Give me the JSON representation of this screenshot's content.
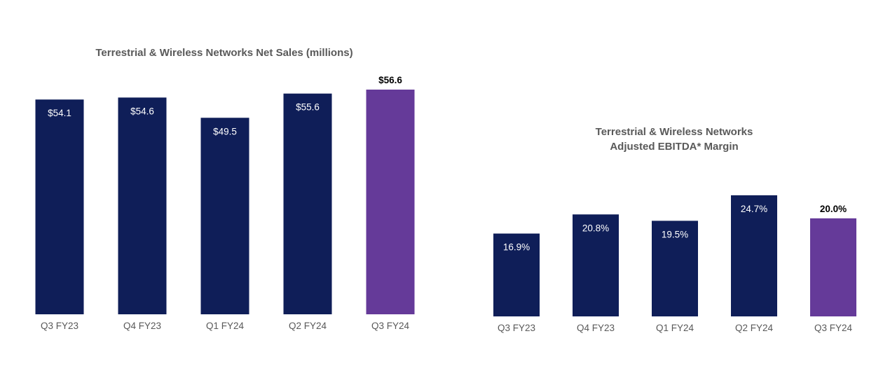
{
  "colors": {
    "bar": "#0f1e58",
    "highlight": "#653a99",
    "title": "#595959",
    "tick": "#595959",
    "label_inside": "#ffffff",
    "label_outside": "#000000"
  },
  "chart_data": [
    {
      "type": "bar",
      "title": "Terrestrial & Wireless Networks Net Sales (millions)",
      "categories": [
        "Q3 FY23",
        "Q4 FY23",
        "Q1 FY24",
        "Q2 FY24",
        "Q3 FY24"
      ],
      "values": [
        54.1,
        54.6,
        49.5,
        55.6,
        56.6
      ],
      "data_labels": [
        "$54.1",
        "$54.6",
        "$49.5",
        "$55.6",
        "$56.6"
      ],
      "highlight_index": 4,
      "ylim": [
        0,
        56.6
      ],
      "grid": false,
      "legend": "none"
    },
    {
      "type": "bar",
      "title_lines": [
        "Terrestrial & Wireless Networks",
        "Adjusted EBITDA* Margin"
      ],
      "categories": [
        "Q3 FY23",
        "Q4 FY23",
        "Q1 FY24",
        "Q2 FY24",
        "Q3 FY24"
      ],
      "values": [
        16.9,
        20.8,
        19.5,
        24.7,
        20.0
      ],
      "data_labels": [
        "16.9%",
        "20.8%",
        "19.5%",
        "24.7%",
        "20.0%"
      ],
      "highlight_index": 4,
      "ylim": [
        0,
        24.7
      ],
      "grid": false,
      "legend": "none"
    }
  ]
}
